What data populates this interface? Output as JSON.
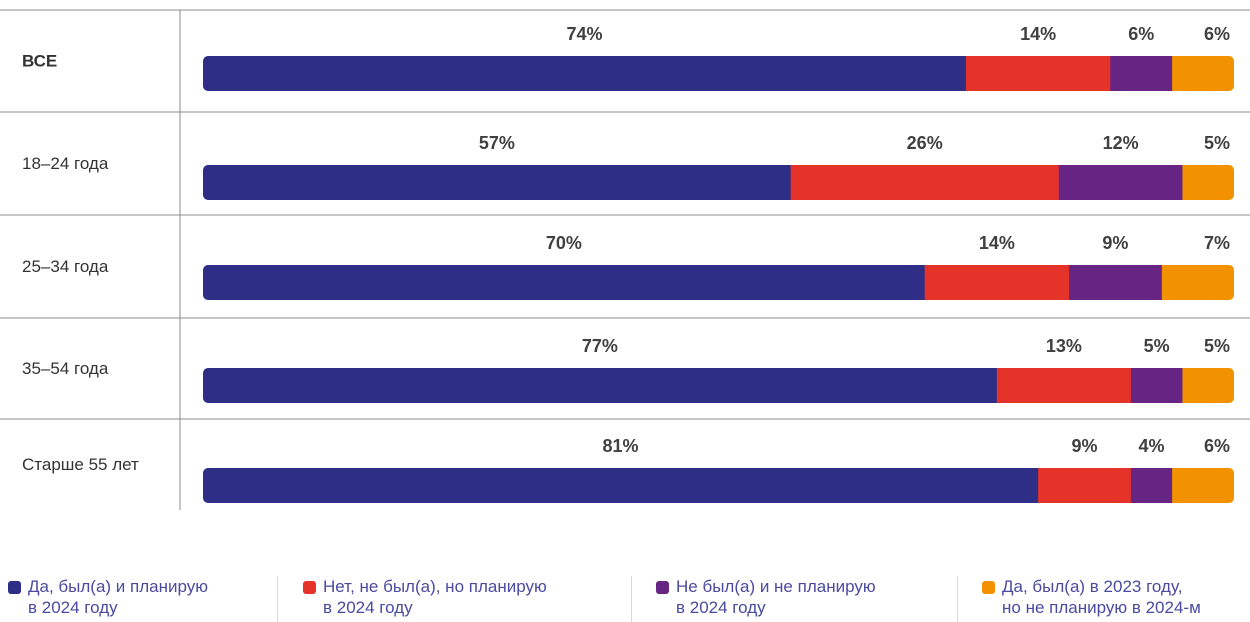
{
  "chart_data": {
    "type": "bar",
    "orientation": "horizontal",
    "stacked": true,
    "percent_scale": true,
    "categories": [
      "ВСЕ",
      "18–24 года",
      "25–34 года",
      "35–54 года",
      "Старше 55 лет"
    ],
    "category_bold": [
      true,
      false,
      false,
      false,
      false
    ],
    "series": [
      {
        "name": "Да, был(а) и планирую\nв 2024 году",
        "color": "#2e2e86",
        "values": [
          74,
          57,
          70,
          77,
          81
        ]
      },
      {
        "name": "Нет, не был(а), но планирую\nв 2024 году",
        "color": "#e5332a",
        "values": [
          14,
          26,
          14,
          13,
          9
        ]
      },
      {
        "name": "Не был(а) и не планирую\nв 2024 году",
        "color": "#662483",
        "values": [
          6,
          12,
          9,
          5,
          4
        ]
      },
      {
        "name": "Да, был(а) в 2023 году,\nно не планирую в 2024-м",
        "color": "#f39200",
        "values": [
          6,
          5,
          7,
          5,
          6
        ]
      }
    ],
    "labels": [
      [
        "74%",
        "14%",
        "6%",
        "6%"
      ],
      [
        "57%",
        "26%",
        "12%",
        "5%"
      ],
      [
        "70%",
        "14%",
        "9%",
        "7%"
      ],
      [
        "77%",
        "13%",
        "5%",
        "5%"
      ],
      [
        "81%",
        "9%",
        "4%",
        "6%"
      ]
    ],
    "legend_position": "bottom",
    "grid": false
  }
}
